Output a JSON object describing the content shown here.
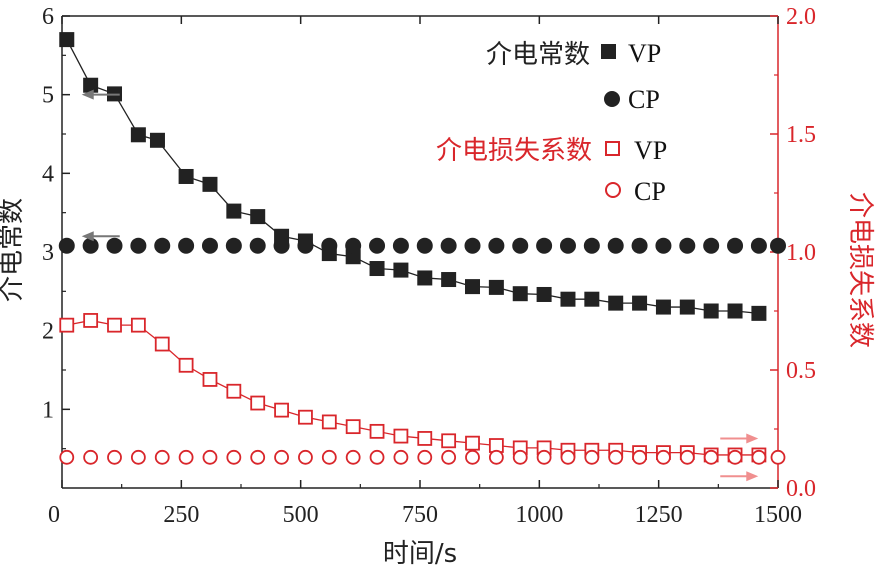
{
  "chart_data": {
    "type": "line",
    "x_label": "时间/s",
    "y_label_left": "介电常数",
    "y_label_right": "介电损失系数",
    "x_ticks": [
      "0",
      "250",
      "500",
      "750",
      "1000",
      "1250",
      "1500"
    ],
    "y_ticks_left": [
      "1",
      "2",
      "3",
      "4",
      "5",
      "6"
    ],
    "y_ticks_right": [
      "0.0",
      "0.5",
      "1.0",
      "1.5",
      "2.0"
    ],
    "xlim": [
      0,
      1500
    ],
    "ylim_left": [
      0,
      6
    ],
    "ylim_right": [
      0,
      2.0
    ],
    "legend": {
      "group1_label": "介电常数",
      "group2_label": "介电损失系数",
      "vp": "VP",
      "cp": "CP"
    },
    "series": [
      {
        "name": "介电常数 VP",
        "axis": "left",
        "marker": "filled-square",
        "color": "#222222",
        "x": [
          10,
          60,
          110,
          160,
          200,
          260,
          310,
          360,
          410,
          460,
          510,
          560,
          610,
          660,
          710,
          760,
          810,
          860,
          910,
          960,
          1010,
          1060,
          1110,
          1160,
          1210,
          1260,
          1310,
          1360,
          1410,
          1460
        ],
        "y": [
          5.7,
          5.12,
          5.01,
          4.49,
          4.42,
          3.96,
          3.86,
          3.52,
          3.45,
          3.2,
          3.14,
          2.98,
          2.94,
          2.79,
          2.77,
          2.67,
          2.65,
          2.56,
          2.55,
          2.47,
          2.46,
          2.4,
          2.4,
          2.35,
          2.35,
          2.3,
          2.3,
          2.25,
          2.25,
          2.22
        ]
      },
      {
        "name": "介电常数 CP",
        "axis": "left",
        "marker": "filled-circle",
        "color": "#222222",
        "x": [
          10,
          60,
          110,
          160,
          210,
          260,
          310,
          360,
          410,
          460,
          510,
          560,
          610,
          660,
          710,
          760,
          810,
          860,
          910,
          960,
          1010,
          1060,
          1110,
          1160,
          1210,
          1260,
          1310,
          1360,
          1410,
          1460,
          1500
        ],
        "y": [
          3.08,
          3.08,
          3.08,
          3.08,
          3.08,
          3.08,
          3.08,
          3.08,
          3.08,
          3.08,
          3.08,
          3.08,
          3.08,
          3.08,
          3.08,
          3.08,
          3.08,
          3.08,
          3.08,
          3.08,
          3.08,
          3.08,
          3.08,
          3.08,
          3.08,
          3.08,
          3.08,
          3.08,
          3.08,
          3.08,
          3.08
        ]
      },
      {
        "name": "介电损失系数 VP",
        "axis": "right",
        "marker": "open-square",
        "color": "#d9262b",
        "x": [
          10,
          60,
          110,
          160,
          210,
          260,
          310,
          360,
          410,
          460,
          510,
          560,
          610,
          660,
          710,
          760,
          810,
          860,
          910,
          960,
          1010,
          1060,
          1110,
          1160,
          1210,
          1260,
          1310,
          1360,
          1410,
          1460
        ],
        "y": [
          0.69,
          0.71,
          0.69,
          0.69,
          0.61,
          0.52,
          0.46,
          0.41,
          0.36,
          0.33,
          0.3,
          0.28,
          0.26,
          0.24,
          0.22,
          0.21,
          0.2,
          0.19,
          0.18,
          0.17,
          0.17,
          0.16,
          0.16,
          0.16,
          0.15,
          0.15,
          0.15,
          0.14,
          0.14,
          0.14
        ]
      },
      {
        "name": "介电损失系数 CP",
        "axis": "right",
        "marker": "open-circle",
        "color": "#d9262b",
        "x": [
          10,
          60,
          110,
          160,
          210,
          260,
          310,
          360,
          410,
          460,
          510,
          560,
          610,
          660,
          710,
          760,
          810,
          860,
          910,
          960,
          1010,
          1060,
          1110,
          1160,
          1210,
          1260,
          1310,
          1360,
          1410,
          1460,
          1500
        ],
        "y": [
          0.13,
          0.13,
          0.13,
          0.13,
          0.13,
          0.13,
          0.13,
          0.13,
          0.13,
          0.13,
          0.13,
          0.13,
          0.13,
          0.13,
          0.13,
          0.13,
          0.13,
          0.13,
          0.13,
          0.13,
          0.13,
          0.13,
          0.13,
          0.13,
          0.13,
          0.13,
          0.13,
          0.13,
          0.13,
          0.13,
          0.13
        ]
      }
    ],
    "annotations": [
      {
        "name": "arrow-left-vp",
        "axis": "left",
        "x": 100,
        "y": 5.0,
        "direction": "left"
      },
      {
        "name": "arrow-left-cp",
        "axis": "left",
        "x": 100,
        "y": 3.2,
        "direction": "left"
      },
      {
        "name": "arrow-right-vp",
        "axis": "right",
        "x": 1400,
        "y": 0.21,
        "direction": "right"
      },
      {
        "name": "arrow-right-cp",
        "axis": "right",
        "x": 1400,
        "y": 0.05,
        "direction": "right"
      }
    ]
  }
}
